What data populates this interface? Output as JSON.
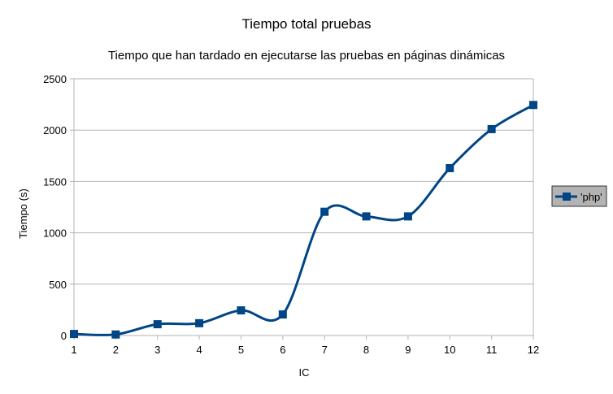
{
  "chart_data": {
    "type": "line",
    "title": "Tiempo total pruebas",
    "subtitle": "Tiempo que han tardado en ejecutarse las pruebas en páginas dinámicas",
    "xlabel": "IC",
    "ylabel": "Tiempo (s)",
    "x": [
      1,
      2,
      3,
      4,
      5,
      6,
      7,
      8,
      9,
      10,
      11,
      12
    ],
    "ylim": [
      0,
      2500
    ],
    "yticks": [
      0,
      500,
      1000,
      1500,
      2000,
      2500
    ],
    "grid": true,
    "smooth": true,
    "legend_position": "right",
    "series": [
      {
        "name": "'php'",
        "color": "#004586",
        "marker": "square",
        "values": [
          15,
          10,
          110,
          120,
          245,
          205,
          1205,
          1160,
          1160,
          1630,
          2010,
          2245
        ]
      }
    ]
  }
}
